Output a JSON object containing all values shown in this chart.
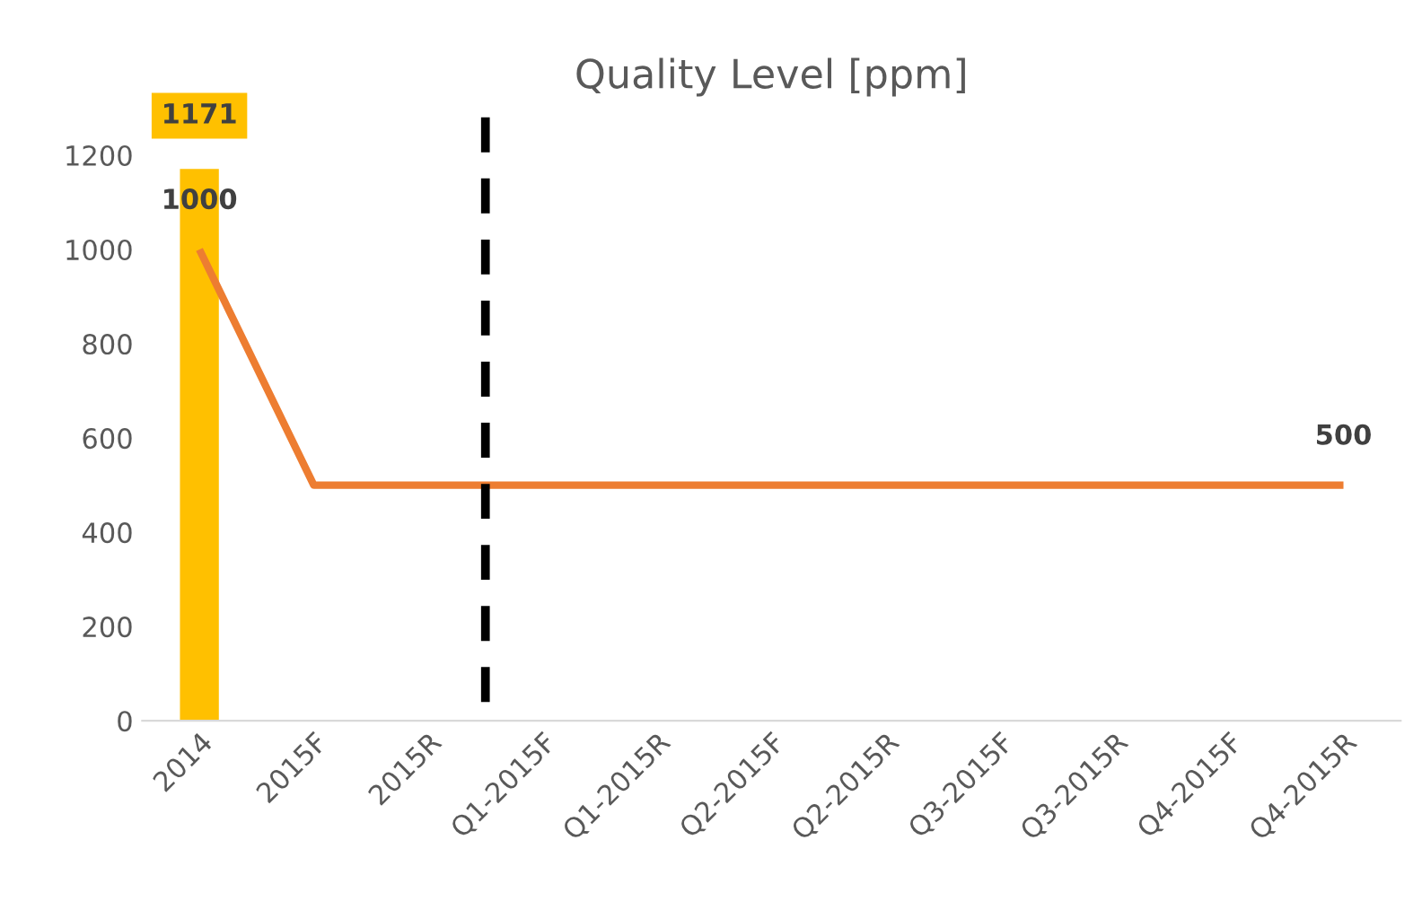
{
  "chart_data": {
    "type": "bar",
    "title": "Quality Level [ppm]",
    "categories": [
      "2014",
      "2015F",
      "2015R",
      "Q1-2015F",
      "Q1-2015R",
      "Q2-2015F",
      "Q2-2015R",
      "Q3-2015F",
      "Q3-2015R",
      "Q4-2015F",
      "Q4-2015R"
    ],
    "series": [
      {
        "color": "#ffc000",
        "values": [
          1171,
          null,
          null,
          null,
          null,
          null,
          null,
          null,
          null,
          null,
          null
        ],
        "value_labels": [
          "1171",
          null,
          null,
          null,
          null,
          null,
          null,
          null,
          null,
          null,
          null
        ]
      },
      {
        "type": "line",
        "color": "#ed7d31",
        "values": [
          1000,
          500,
          500,
          500,
          500,
          500,
          500,
          500,
          500,
          500,
          500
        ],
        "value_labels": [
          "1000",
          null,
          null,
          null,
          null,
          null,
          null,
          null,
          null,
          null,
          "500"
        ]
      }
    ],
    "ylim": [
      0,
      1300
    ],
    "yticks": [
      0,
      200,
      400,
      600,
      800,
      1000,
      1200
    ],
    "grid": false,
    "legend": false,
    "marker": "none"
  }
}
